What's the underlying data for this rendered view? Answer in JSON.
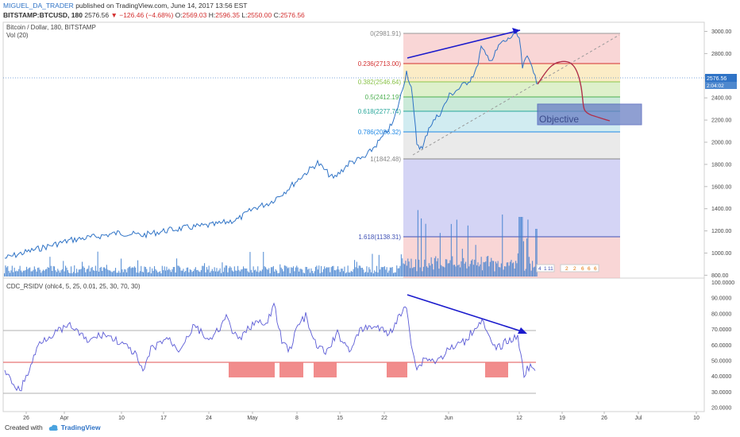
{
  "header": {
    "author": "MIGUEL_DA_TRADER",
    "published_text": "published on TradingView.com, June 14, 2017 13:56 EST",
    "symbol": "BITSTAMP:BTCUSD, 180",
    "last": "2576.56",
    "change": "▼ −126.46 (−4.68%)",
    "o_label": "O:",
    "o_val": "2569.03",
    "h_label": "H:",
    "h_val": "2596.35",
    "l_label": "L:",
    "l_val": "2550.00",
    "c_label": "C:",
    "c_val": "2576.56"
  },
  "legend": {
    "pair": "Bitcoin / Dollar, 180, BITSTAMP",
    "vol": "Vol (20)",
    "indicator": "CDC_RSIDV (ohlc4, 5, 25, 0.01, 25, 30, 70, 30)"
  },
  "price_axis": {
    "ticks": [
      "3000.00",
      "2800.00",
      "2600.00",
      "2400.00",
      "2200.00",
      "2000.00",
      "1800.00",
      "1600.00",
      "1400.00",
      "1200.00",
      "1000.00",
      "800.00"
    ],
    "last_label": "2576.56",
    "last_label2": "2:04:02"
  },
  "rsi_axis": {
    "ticks": [
      "100.0000",
      "90.0000",
      "80.0000",
      "70.0000",
      "60.0000",
      "50.0000",
      "40.0000",
      "30.0000",
      "20.0000"
    ]
  },
  "time_axis": {
    "ticks": [
      "26",
      "Apr",
      "10",
      "17",
      "24",
      "May",
      "8",
      "15",
      "22",
      "Jun",
      "12",
      "19",
      "26",
      "Jul",
      "10"
    ]
  },
  "fib_levels": [
    {
      "label": "0(2981.91)",
      "color": "#888888"
    },
    {
      "label": "0.236(2713.00)",
      "color": "#d32f2f"
    },
    {
      "label": "0.382(2546.64)",
      "color": "#8bc34a"
    },
    {
      "label": "0.5(2412.19)",
      "color": "#4caf50"
    },
    {
      "label": "0.618(2277.74)",
      "color": "#26a69a"
    },
    {
      "label": "0.786(2086.32)",
      "color": "#1e88e5"
    },
    {
      "label": "1(1842.48)",
      "color": "#888888"
    },
    {
      "label": "1.618(1138.31)",
      "color": "#3f51b5"
    }
  ],
  "annotations": {
    "objective": "Objective",
    "event_left": "4",
    "event_left2": "1",
    "event_left3": "11",
    "events_right": [
      "2",
      "2",
      "6",
      "6",
      "6"
    ]
  },
  "footer": {
    "created_with": "Created with",
    "brand": "TradingView"
  },
  "colors": {
    "price_line": "#2f73c6",
    "volume": "#3f7fcf",
    "trend": "#1a1acc",
    "curve": "#b0304a",
    "rsi": "#5b5bd6",
    "rsi_red": "#f08080"
  }
}
